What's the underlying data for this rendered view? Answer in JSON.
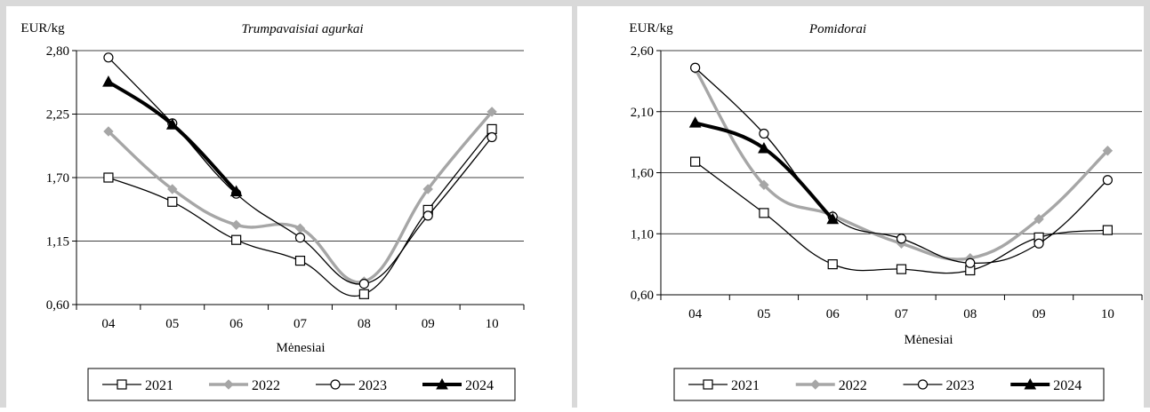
{
  "chart_data": [
    {
      "type": "line",
      "title": "Trumpavaisiai agurkai",
      "ylabel": "EUR/kg",
      "xlabel": "Mėnesiai",
      "categories": [
        "04",
        "05",
        "06",
        "07",
        "08",
        "09",
        "10"
      ],
      "ylim": [
        0.6,
        2.8
      ],
      "yticks": [
        "0,60",
        "1,15",
        "1,70",
        "2,25",
        "2,80"
      ],
      "grid": true,
      "legend_position": "bottom",
      "series": [
        {
          "name": "2021",
          "values": [
            1.7,
            1.49,
            1.16,
            0.98,
            0.69,
            1.42,
            2.12
          ]
        },
        {
          "name": "2022",
          "values": [
            2.1,
            1.6,
            1.29,
            1.26,
            0.8,
            1.6,
            2.27
          ]
        },
        {
          "name": "2023",
          "values": [
            2.74,
            2.17,
            1.56,
            1.18,
            0.78,
            1.37,
            2.05
          ]
        },
        {
          "name": "2024",
          "values": [
            2.53,
            2.16,
            1.58,
            null,
            null,
            null,
            null
          ]
        }
      ]
    },
    {
      "type": "line",
      "title": "Pomidorai",
      "ylabel": "EUR/kg",
      "xlabel": "Mėnesiai",
      "categories": [
        "04",
        "05",
        "06",
        "07",
        "08",
        "09",
        "10"
      ],
      "ylim": [
        0.6,
        2.6
      ],
      "yticks": [
        "0,60",
        "1,10",
        "1,60",
        "2,10",
        "2,60"
      ],
      "grid": true,
      "legend_position": "bottom",
      "series": [
        {
          "name": "2021",
          "values": [
            1.69,
            1.27,
            0.85,
            0.81,
            0.8,
            1.07,
            1.13
          ]
        },
        {
          "name": "2022",
          "values": [
            2.45,
            1.5,
            1.25,
            1.02,
            0.9,
            1.22,
            1.78
          ]
        },
        {
          "name": "2023",
          "values": [
            2.46,
            1.92,
            1.24,
            1.06,
            0.86,
            1.02,
            1.54
          ]
        },
        {
          "name": "2024",
          "values": [
            2.01,
            1.8,
            1.22,
            null,
            null,
            null,
            null
          ]
        }
      ]
    }
  ]
}
